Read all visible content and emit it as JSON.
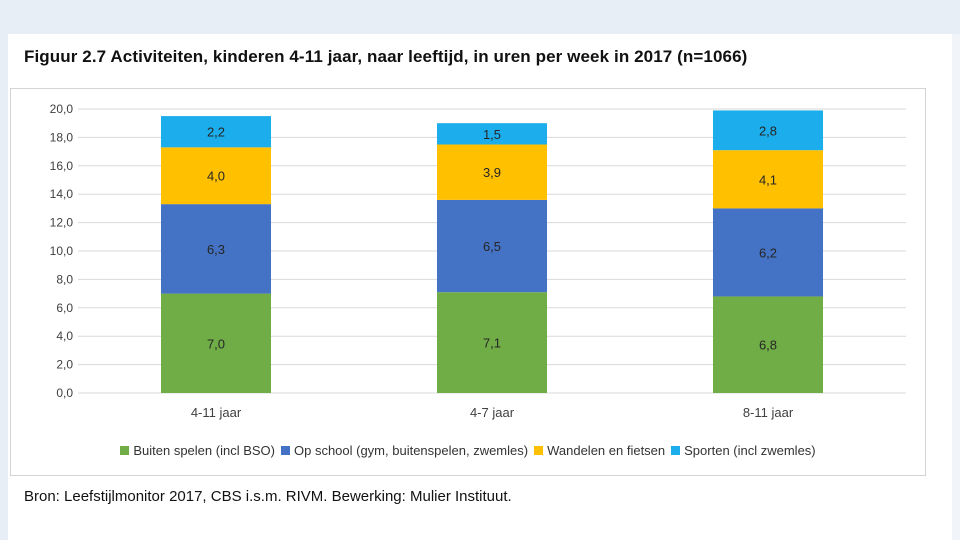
{
  "figure_title": "Figuur 2.7 Activiteiten, kinderen 4-11 jaar, naar leeftijd, in uren per week in 2017 (n=1066)",
  "source_note": "Bron: Leefstijlmonitor 2017, CBS i.s.m. RIVM. Bewerking: Mulier Instituut.",
  "chart_data": {
    "type": "bar",
    "stacked": true,
    "title": "Figuur 2.7 Activiteiten, kinderen 4-11 jaar, naar leeftijd, in uren per week in 2017 (n=1066)",
    "xlabel": "",
    "ylabel": "",
    "ylim": [
      0,
      20
    ],
    "ytick_step": 2,
    "yticks": [
      "0,0",
      "2,0",
      "4,0",
      "6,0",
      "8,0",
      "10,0",
      "12,0",
      "14,0",
      "16,0",
      "18,0",
      "20,0"
    ],
    "grid": true,
    "legend_position": "bottom",
    "categories": [
      "4-11 jaar",
      "4-7 jaar",
      "8-11 jaar"
    ],
    "series": [
      {
        "name": "Buiten spelen (incl BSO)",
        "color": "#70ad47",
        "values": [
          7.0,
          7.1,
          6.8
        ],
        "labels": [
          "7,0",
          "7,1",
          "6,8"
        ]
      },
      {
        "name": "Op school (gym, buitenspelen, zwemles)",
        "color": "#4472c4",
        "values": [
          6.3,
          6.5,
          6.2
        ],
        "labels": [
          "6,3",
          "6,5",
          "6,2"
        ]
      },
      {
        "name": "Wandelen en fietsen",
        "color": "#ffc000",
        "values": [
          4.0,
          3.9,
          4.1
        ],
        "labels": [
          "4,0",
          "3,9",
          "4,1"
        ]
      },
      {
        "name": "Sporten (incl zwemles)",
        "color": "#1cadec",
        "values": [
          2.2,
          1.5,
          2.8
        ],
        "labels": [
          "2,2",
          "1,5",
          "2,8"
        ]
      }
    ]
  }
}
